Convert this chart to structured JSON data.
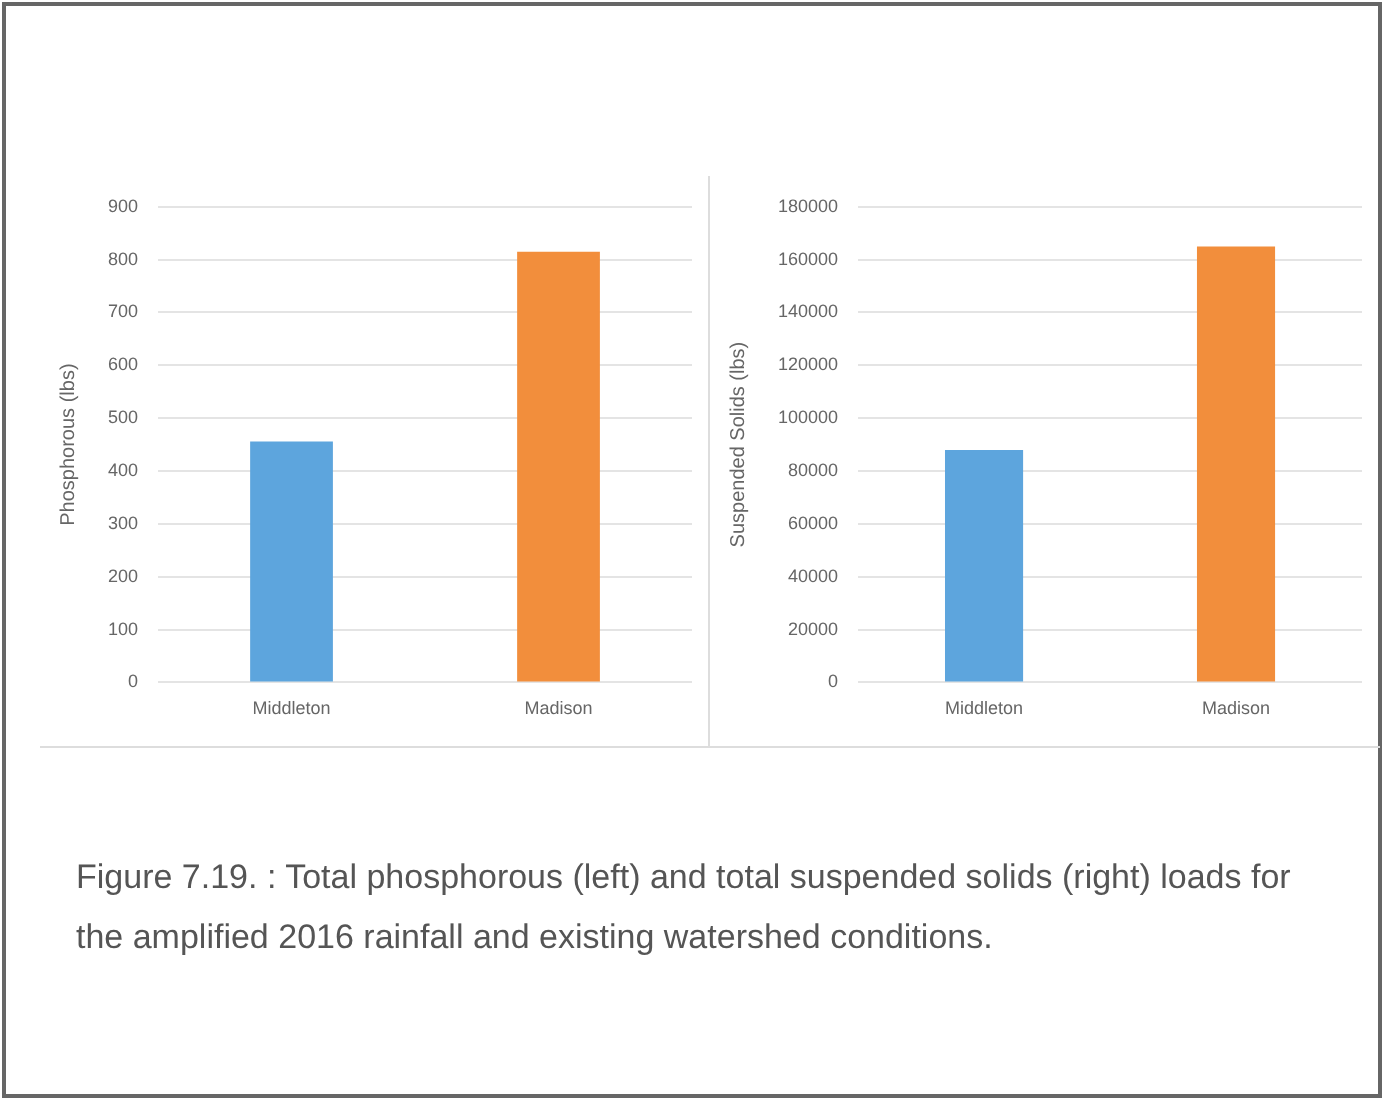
{
  "chart_data": [
    {
      "type": "bar",
      "categories": [
        "Middleton",
        "Madison"
      ],
      "ylabel": "Phosphorous (lbs)",
      "series": [
        {
          "colors": [
            "#5da5dd",
            "#f28e3c"
          ],
          "values": [
            456,
            815
          ]
        }
      ],
      "ylim": [
        0,
        900
      ],
      "yticks": [
        0,
        100,
        200,
        300,
        400,
        500,
        600,
        700,
        800,
        900
      ],
      "grid": "y",
      "legend": false
    },
    {
      "type": "bar",
      "categories": [
        "Middleton",
        "Madison"
      ],
      "ylabel": "Suspended Solids (lbs)",
      "series": [
        {
          "colors": [
            "#5da5dd",
            "#f28e3c"
          ],
          "values": [
            88000,
            165000
          ]
        }
      ],
      "ylim": [
        0,
        180000
      ],
      "yticks": [
        0,
        20000,
        40000,
        60000,
        80000,
        100000,
        120000,
        140000,
        160000,
        180000
      ],
      "grid": "y",
      "legend": false,
      "annotations": [
        "Figure 7.19. : Total phosphorous (left) and total suspended solids (right) loads for the amplified 2016 rainfall and existing watershed conditions."
      ]
    }
  ]
}
